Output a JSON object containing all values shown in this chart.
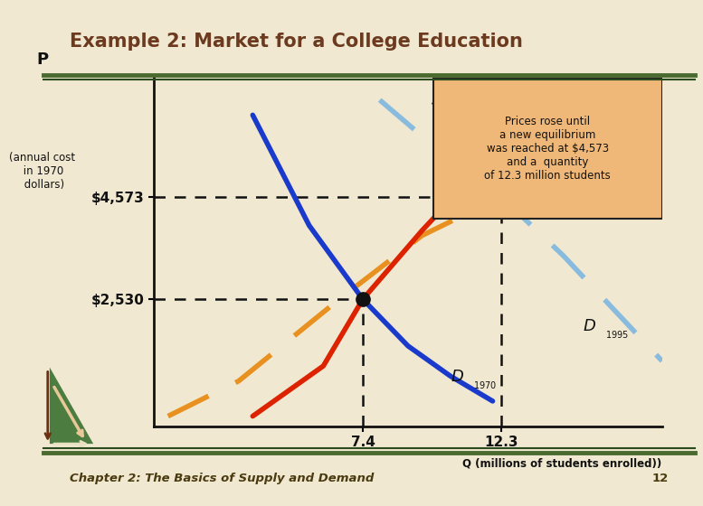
{
  "title": "Example 2: Market for a College Education",
  "bg_color": "#f0e8d0",
  "title_color": "#6b3a1f",
  "footer_text": "Chapter 2: The Basics of Supply and Demand",
  "footer_page": "12",
  "p_label": "P",
  "p_sublabel": "(annual cost\n in 1970\n dollars)",
  "q_label": "Q (millions of students enrolled))",
  "price1": 2530,
  "price2": 4573,
  "qty1": 7.4,
  "qty2": 12.3,
  "xlim": [
    0,
    18
  ],
  "ylim": [
    0,
    7000
  ],
  "annotation_text": "Prices rose until\na new equilibrium\nwas reached at $4,573\nand a  quantity\nof 12.3 million students",
  "supply1970_color": "#dd2200",
  "supply1995_color": "#e89020",
  "demand1970_color": "#1a3acc",
  "demand1995_color": "#88bbdd",
  "eq1970_color": "#111111",
  "eq1995_color": "#cc0000",
  "dashed_line_color": "#111111",
  "box_bg": "#f0b878",
  "box_edge": "#222222",
  "header_line_color1": "#4a6a30",
  "header_line_color2": "#2a4a20",
  "footer_line_color1": "#4a6a30",
  "footer_line_color2": "#2a4a20",
  "s1970_x": [
    3.5,
    6.0,
    7.4,
    9.5,
    12.0,
    14.5
  ],
  "s1970_y": [
    200,
    1200,
    2530,
    3900,
    5400,
    6500
  ],
  "s1995_x": [
    0.5,
    3.0,
    6.5,
    9.5,
    12.3,
    15.0,
    17.5
  ],
  "s1995_y": [
    200,
    900,
    2500,
    3800,
    4573,
    5600,
    6500
  ],
  "d1970_x": [
    3.5,
    5.5,
    7.4,
    9.0,
    10.5,
    12.0
  ],
  "d1970_y": [
    6200,
    4000,
    2530,
    1600,
    1000,
    500
  ],
  "d1995_x": [
    8.0,
    10.5,
    12.3,
    14.5,
    16.5,
    18.0
  ],
  "d1995_y": [
    6500,
    5300,
    4573,
    3400,
    2200,
    1300
  ]
}
